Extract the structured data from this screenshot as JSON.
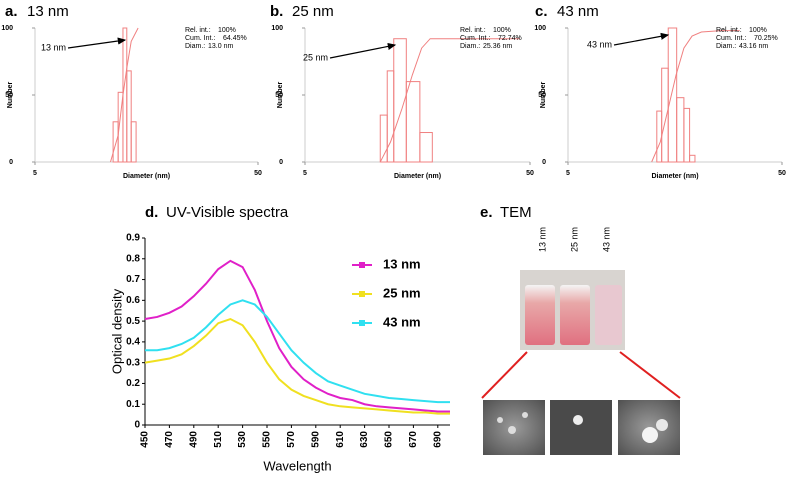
{
  "chart_data": [
    {
      "type": "histogram",
      "label": "a.",
      "title": "13 nm",
      "xlabel": "Diameter (nm)",
      "ylabel": "Number",
      "xscale": "log",
      "xlim": [
        5,
        50
      ],
      "xticks": [
        5,
        50
      ],
      "ylim": [
        0,
        100
      ],
      "yticks": [
        0,
        50,
        100
      ],
      "color": "#f08080",
      "bins": [
        11.2,
        11.8,
        12.4,
        12.9,
        13.5,
        14.2
      ],
      "values": [
        30,
        52,
        100,
        68,
        30
      ],
      "cumulative": {
        "x": [
          10.9,
          11.8,
          12.4,
          12.9,
          13.5,
          14.5
        ],
        "values": [
          0,
          20,
          50,
          70,
          90,
          100
        ]
      },
      "annotation": "13 nm",
      "stats": [
        {
          "label": "Rel. int.:",
          "value": "100%"
        },
        {
          "label": "Cum. Int.:",
          "value": "64.45%"
        },
        {
          "label": "Diam.:",
          "value": "13.0 nm"
        }
      ]
    },
    {
      "type": "histogram",
      "label": "b.",
      "title": "25 nm",
      "xlabel": "Diameter (nm)",
      "ylabel": "Number",
      "xscale": "log",
      "xlim": [
        5,
        50
      ],
      "xticks": [
        5,
        50
      ],
      "ylim": [
        0,
        100
      ],
      "yticks": [
        0,
        50,
        100
      ],
      "color": "#f08080",
      "bins": [
        10.8,
        11.6,
        12.4,
        14.1,
        16.2,
        18.4
      ],
      "values": [
        35,
        68,
        92,
        60,
        22
      ],
      "cumulative": {
        "x": [
          10.8,
          12,
          13.5,
          15,
          16.5,
          18,
          25,
          45
        ],
        "values": [
          0,
          15,
          40,
          65,
          85,
          92,
          92,
          92
        ]
      },
      "annotation": "25 nm",
      "stats": [
        {
          "label": "Rel. int.:",
          "value": "100%"
        },
        {
          "label": "Cum. Int.:",
          "value": "72.74%"
        },
        {
          "label": "Diam.:",
          "value": "25.36 nm"
        }
      ]
    },
    {
      "type": "histogram",
      "label": "c.",
      "title": "43 nm",
      "xlabel": "Diameter (nm)",
      "ylabel": "Number",
      "xscale": "log",
      "xlim": [
        5,
        50
      ],
      "xticks": [
        5,
        50
      ],
      "ylim": [
        0,
        100
      ],
      "yticks": [
        0,
        50,
        100
      ],
      "color": "#f08080",
      "bins": [
        13.0,
        13.7,
        14.7,
        16.1,
        17.4,
        18.5,
        19.6
      ],
      "values": [
        38,
        70,
        100,
        48,
        40,
        5
      ],
      "cumulative": {
        "x": [
          12.3,
          13.5,
          14.7,
          16,
          17.4,
          19,
          21,
          26,
          31.7
        ],
        "values": [
          0,
          15,
          40,
          65,
          85,
          94,
          97,
          98,
          98
        ]
      },
      "annotation": "43 nm",
      "stats": [
        {
          "label": "Rel. int.:",
          "value": "100%"
        },
        {
          "label": "Cum. Int.:",
          "value": "70.25%"
        },
        {
          "label": "Diam.:",
          "value": "43.16 nm"
        }
      ]
    },
    {
      "type": "line",
      "label": "d.",
      "title": "UV-Visible spectra",
      "xlabel": "Wavelength",
      "ylabel": "Optical density",
      "xlim": [
        450,
        700
      ],
      "xticks": [
        450,
        470,
        490,
        510,
        530,
        550,
        570,
        590,
        610,
        630,
        650,
        670,
        690
      ],
      "ylim": [
        0,
        0.9
      ],
      "yticks": [
        0,
        0.1,
        0.2,
        0.3,
        0.4,
        0.5,
        0.6,
        0.7,
        0.8,
        0.9
      ],
      "x": [
        450,
        460,
        470,
        480,
        490,
        500,
        510,
        520,
        530,
        540,
        550,
        560,
        570,
        580,
        590,
        600,
        610,
        620,
        630,
        640,
        650,
        660,
        670,
        680,
        690,
        700
      ],
      "series": [
        {
          "name": "13 nm",
          "color": "#e020c8",
          "values": [
            0.51,
            0.52,
            0.54,
            0.57,
            0.62,
            0.68,
            0.75,
            0.79,
            0.76,
            0.65,
            0.5,
            0.37,
            0.28,
            0.22,
            0.18,
            0.15,
            0.13,
            0.12,
            0.1,
            0.09,
            0.085,
            0.08,
            0.075,
            0.07,
            0.065,
            0.065
          ]
        },
        {
          "name": "25 nm",
          "color": "#f0e020",
          "values": [
            0.3,
            0.31,
            0.32,
            0.34,
            0.38,
            0.43,
            0.49,
            0.51,
            0.48,
            0.4,
            0.3,
            0.22,
            0.17,
            0.14,
            0.12,
            0.1,
            0.09,
            0.085,
            0.08,
            0.075,
            0.07,
            0.065,
            0.06,
            0.06,
            0.055,
            0.055
          ]
        },
        {
          "name": "43 nm",
          "color": "#30e0f0",
          "values": [
            0.36,
            0.36,
            0.37,
            0.39,
            0.42,
            0.47,
            0.53,
            0.58,
            0.6,
            0.58,
            0.52,
            0.44,
            0.36,
            0.3,
            0.25,
            0.21,
            0.19,
            0.17,
            0.15,
            0.14,
            0.13,
            0.125,
            0.12,
            0.115,
            0.11,
            0.11
          ]
        }
      ]
    }
  ],
  "tem": {
    "label": "e.",
    "title": "TEM",
    "samples": [
      "13 nm",
      "25 nm",
      "43 nm"
    ]
  }
}
